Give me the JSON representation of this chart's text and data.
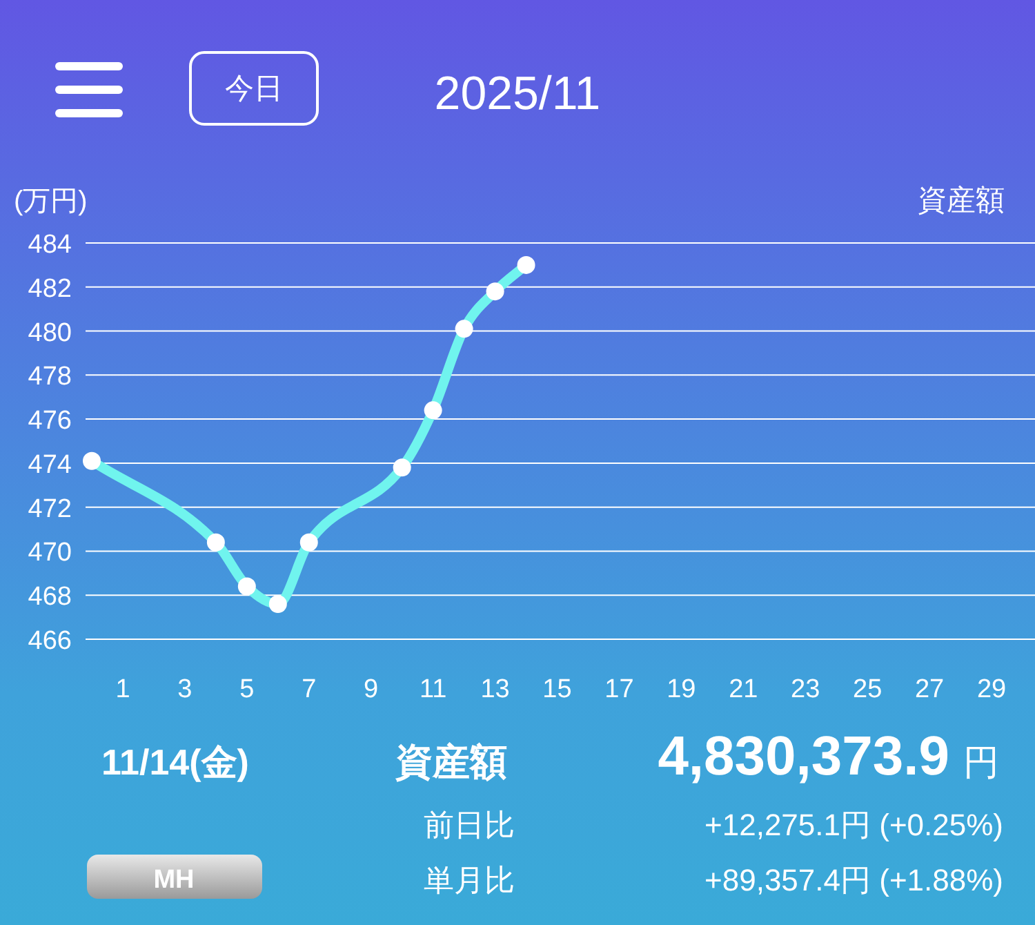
{
  "chart_data": {
    "type": "line",
    "title": "2025/11",
    "ylabel": "(万円)",
    "x": [
      0,
      4,
      5,
      6,
      7,
      10,
      11,
      12,
      13,
      14
    ],
    "series": [
      {
        "color": "#70f4ee",
        "values": [
          474.1,
          470.4,
          468.4,
          467.6,
          470.4,
          473.8,
          476.4,
          480.1,
          481.8,
          483.0
        ]
      }
    ],
    "xlim": [
      -0.2,
      30.4
    ],
    "ylim": [
      466,
      484
    ],
    "xticks": [
      1,
      3,
      5,
      7,
      9,
      11,
      13,
      15,
      17,
      19,
      21,
      23,
      25,
      27,
      29
    ],
    "yticks": [
      466,
      468,
      470,
      472,
      474,
      476,
      478,
      480,
      482,
      484
    ],
    "grid": "y",
    "marker": "circle",
    "annotations": [
      "今日",
      "資産額",
      "11/14(金)",
      "資産額",
      "4,830,373.9",
      "円",
      "前日比",
      "+12,275.1円 (+0.25%)",
      "単月比",
      "+89,357.4円 (+1.88%)",
      "MH"
    ]
  }
}
